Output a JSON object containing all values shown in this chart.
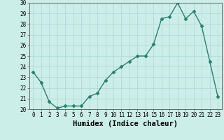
{
  "x": [
    0,
    1,
    2,
    3,
    4,
    5,
    6,
    7,
    8,
    9,
    10,
    11,
    12,
    13,
    14,
    15,
    16,
    17,
    18,
    19,
    20,
    21,
    22,
    23
  ],
  "y": [
    23.5,
    22.5,
    20.7,
    20.1,
    20.3,
    20.3,
    20.3,
    21.2,
    21.5,
    22.7,
    23.5,
    24.0,
    24.5,
    25.0,
    25.0,
    26.1,
    28.5,
    28.7,
    30.0,
    28.5,
    29.2,
    27.8,
    24.5,
    21.2
  ],
  "line_color": "#2e7d6e",
  "marker": "D",
  "markersize": 2.5,
  "bg_color": "#cceee8",
  "grid_color": "#aad8d0",
  "xlabel": "Humidex (Indice chaleur)",
  "ylim": [
    20,
    30
  ],
  "xlim": [
    -0.5,
    23.5
  ],
  "yticks": [
    20,
    21,
    22,
    23,
    24,
    25,
    26,
    27,
    28,
    29,
    30
  ],
  "xticks": [
    0,
    1,
    2,
    3,
    4,
    5,
    6,
    7,
    8,
    9,
    10,
    11,
    12,
    13,
    14,
    15,
    16,
    17,
    18,
    19,
    20,
    21,
    22,
    23
  ],
  "tick_fontsize": 5.5,
  "xlabel_fontsize": 7.5
}
